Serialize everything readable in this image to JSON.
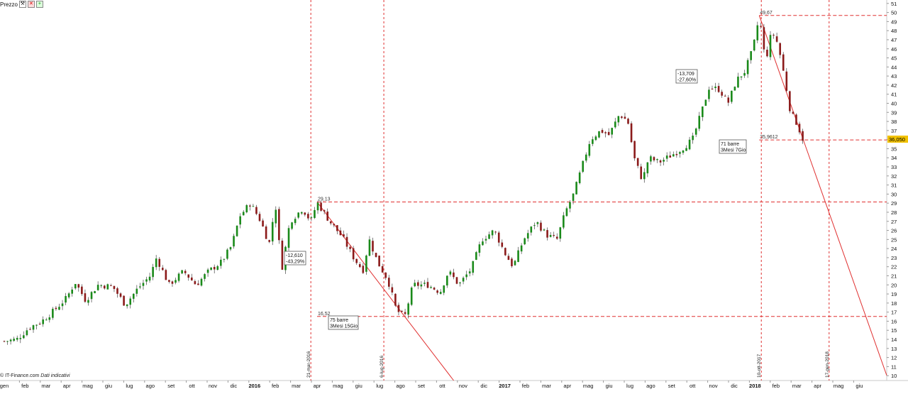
{
  "toolbar": {
    "label": "Prezzo",
    "icons": [
      "wrench-icon",
      "close-icon",
      "add-icon"
    ]
  },
  "credit": {
    "source": "© IT-Finance.com",
    "note": "Dati indicativi"
  },
  "colors": {
    "up": "#1a8a1a",
    "down": "#8b1a1a",
    "annotation": "#e03030",
    "last_price_bg": "#f2c200"
  },
  "chart_data": {
    "type": "candlestick",
    "title": "",
    "price_axis": {
      "ticks": [
        10,
        11,
        12,
        13,
        14,
        15,
        16,
        17,
        18,
        19,
        20,
        21,
        22,
        23,
        24,
        25,
        26,
        27,
        28,
        29,
        30,
        31,
        32,
        33,
        34,
        35,
        36,
        37,
        38,
        39,
        40,
        41,
        42,
        43,
        44,
        45,
        46,
        47,
        48,
        49,
        50,
        51
      ],
      "range": [
        10,
        51
      ],
      "position": "right"
    },
    "time_axis": {
      "labels": [
        "gen",
        "feb",
        "mar",
        "apr",
        "mag",
        "giu",
        "lug",
        "ago",
        "set",
        "ott",
        "nov",
        "dic",
        "2016",
        "feb",
        "mar",
        "apr",
        "mag",
        "giu",
        "lug",
        "ago",
        "set",
        "ott",
        "nov",
        "dic",
        "2017",
        "feb",
        "mar",
        "apr",
        "mag",
        "giu",
        "lug",
        "ago",
        "set",
        "ott",
        "nov",
        "dic",
        "2018",
        "feb",
        "mar",
        "apr",
        "mag",
        "giu"
      ],
      "bold_labels": [
        "2016",
        "2017",
        "2018"
      ]
    },
    "last_price": "36,050",
    "price_points": [
      {
        "m": 0,
        "v": 13.8
      },
      {
        "m": 0.6,
        "v": 14.0
      },
      {
        "m": 1.2,
        "v": 15.3
      },
      {
        "m": 1.8,
        "v": 16.0
      },
      {
        "m": 2.4,
        "v": 17.2
      },
      {
        "m": 3.0,
        "v": 18.6
      },
      {
        "m": 3.4,
        "v": 20.3
      },
      {
        "m": 3.9,
        "v": 18.3
      },
      {
        "m": 4.5,
        "v": 20.0
      },
      {
        "m": 5.2,
        "v": 19.8
      },
      {
        "m": 5.8,
        "v": 17.8
      },
      {
        "m": 6.4,
        "v": 19.6
      },
      {
        "m": 7.0,
        "v": 21.0
      },
      {
        "m": 7.3,
        "v": 23.0
      },
      {
        "m": 7.9,
        "v": 20.0
      },
      {
        "m": 8.6,
        "v": 21.5
      },
      {
        "m": 9.2,
        "v": 20.0
      },
      {
        "m": 9.8,
        "v": 21.5
      },
      {
        "m": 10.4,
        "v": 22.5
      },
      {
        "m": 10.9,
        "v": 24.3
      },
      {
        "m": 11.3,
        "v": 27.6
      },
      {
        "m": 11.8,
        "v": 29.0
      },
      {
        "m": 12.3,
        "v": 27.0
      },
      {
        "m": 12.7,
        "v": 24.5
      },
      {
        "m": 13.0,
        "v": 29.0
      },
      {
        "m": 13.3,
        "v": 21.6
      },
      {
        "m": 13.7,
        "v": 27.0
      },
      {
        "m": 14.3,
        "v": 28.4
      },
      {
        "m": 14.7,
        "v": 27.0
      },
      {
        "m": 15.0,
        "v": 29.1
      },
      {
        "m": 15.6,
        "v": 27.0
      },
      {
        "m": 16.2,
        "v": 25.3
      },
      {
        "m": 16.8,
        "v": 22.8
      },
      {
        "m": 17.2,
        "v": 21.6
      },
      {
        "m": 17.5,
        "v": 25.0
      },
      {
        "m": 17.9,
        "v": 22.5
      },
      {
        "m": 18.4,
        "v": 20.5
      },
      {
        "m": 18.8,
        "v": 17.2
      },
      {
        "m": 19.2,
        "v": 16.5
      },
      {
        "m": 19.6,
        "v": 20.0
      },
      {
        "m": 20.3,
        "v": 20.0
      },
      {
        "m": 20.9,
        "v": 19.2
      },
      {
        "m": 21.3,
        "v": 21.5
      },
      {
        "m": 21.8,
        "v": 20.0
      },
      {
        "m": 22.4,
        "v": 21.8
      },
      {
        "m": 22.9,
        "v": 25.0
      },
      {
        "m": 23.5,
        "v": 26.0
      },
      {
        "m": 24.0,
        "v": 23.5
      },
      {
        "m": 24.4,
        "v": 22.0
      },
      {
        "m": 24.9,
        "v": 25.0
      },
      {
        "m": 25.5,
        "v": 27.0
      },
      {
        "m": 26.0,
        "v": 25.5
      },
      {
        "m": 26.5,
        "v": 25.0
      },
      {
        "m": 26.9,
        "v": 28.0
      },
      {
        "m": 27.3,
        "v": 30.0
      },
      {
        "m": 27.7,
        "v": 33.0
      },
      {
        "m": 28.1,
        "v": 36.0
      },
      {
        "m": 28.6,
        "v": 37.0
      },
      {
        "m": 29.0,
        "v": 36.5
      },
      {
        "m": 29.5,
        "v": 38.8
      },
      {
        "m": 29.9,
        "v": 38.0
      },
      {
        "m": 30.2,
        "v": 34.0
      },
      {
        "m": 30.6,
        "v": 31.5
      },
      {
        "m": 30.9,
        "v": 34.0
      },
      {
        "m": 31.4,
        "v": 33.5
      },
      {
        "m": 32.0,
        "v": 34.3
      },
      {
        "m": 32.5,
        "v": 35.0
      },
      {
        "m": 33.0,
        "v": 36.0
      },
      {
        "m": 33.4,
        "v": 38.8
      },
      {
        "m": 33.8,
        "v": 41.8
      },
      {
        "m": 34.3,
        "v": 41.5
      },
      {
        "m": 34.7,
        "v": 40.0
      },
      {
        "m": 35.1,
        "v": 42.5
      },
      {
        "m": 35.5,
        "v": 43.5
      },
      {
        "m": 35.9,
        "v": 46.0
      },
      {
        "m": 36.2,
        "v": 49.6
      },
      {
        "m": 36.5,
        "v": 44.5
      },
      {
        "m": 36.8,
        "v": 48.0
      },
      {
        "m": 37.1,
        "v": 46.5
      },
      {
        "m": 37.4,
        "v": 43.0
      },
      {
        "m": 37.7,
        "v": 39.0
      },
      {
        "m": 38.0,
        "v": 37.8
      },
      {
        "m": 38.3,
        "v": 36.0
      }
    ],
    "levels": [
      {
        "value": 29.13,
        "label": "29,13"
      },
      {
        "value": 16.52,
        "label": "16,52"
      },
      {
        "value": 49.67,
        "label": "49,67"
      },
      {
        "value": 35.9612,
        "label": "35,9612"
      }
    ],
    "vertical_markers": [
      {
        "label": "21-mar-2016"
      },
      {
        "label": "6-lug-2016"
      },
      {
        "label": "10-ott-2017"
      },
      {
        "label": "17-gen-2018"
      }
    ],
    "trendlines": [
      {
        "from": {
          "month": 15.0,
          "value": 29.13
        },
        "to": {
          "month": 19.2,
          "value": 16.52
        }
      },
      {
        "from": {
          "month": 36.2,
          "value": 49.67
        },
        "to": {
          "month": 38.3,
          "value": 36.05
        }
      }
    ],
    "annotations": [
      {
        "lines": [
          "-12,610",
          "-43,29%"
        ]
      },
      {
        "lines": [
          "75 barre",
          "3Mesi 15Gio"
        ]
      },
      {
        "lines": [
          "-13,709",
          "-27,60%"
        ]
      },
      {
        "lines": [
          "71 barre",
          "3Mesi 7Gio"
        ]
      }
    ]
  }
}
